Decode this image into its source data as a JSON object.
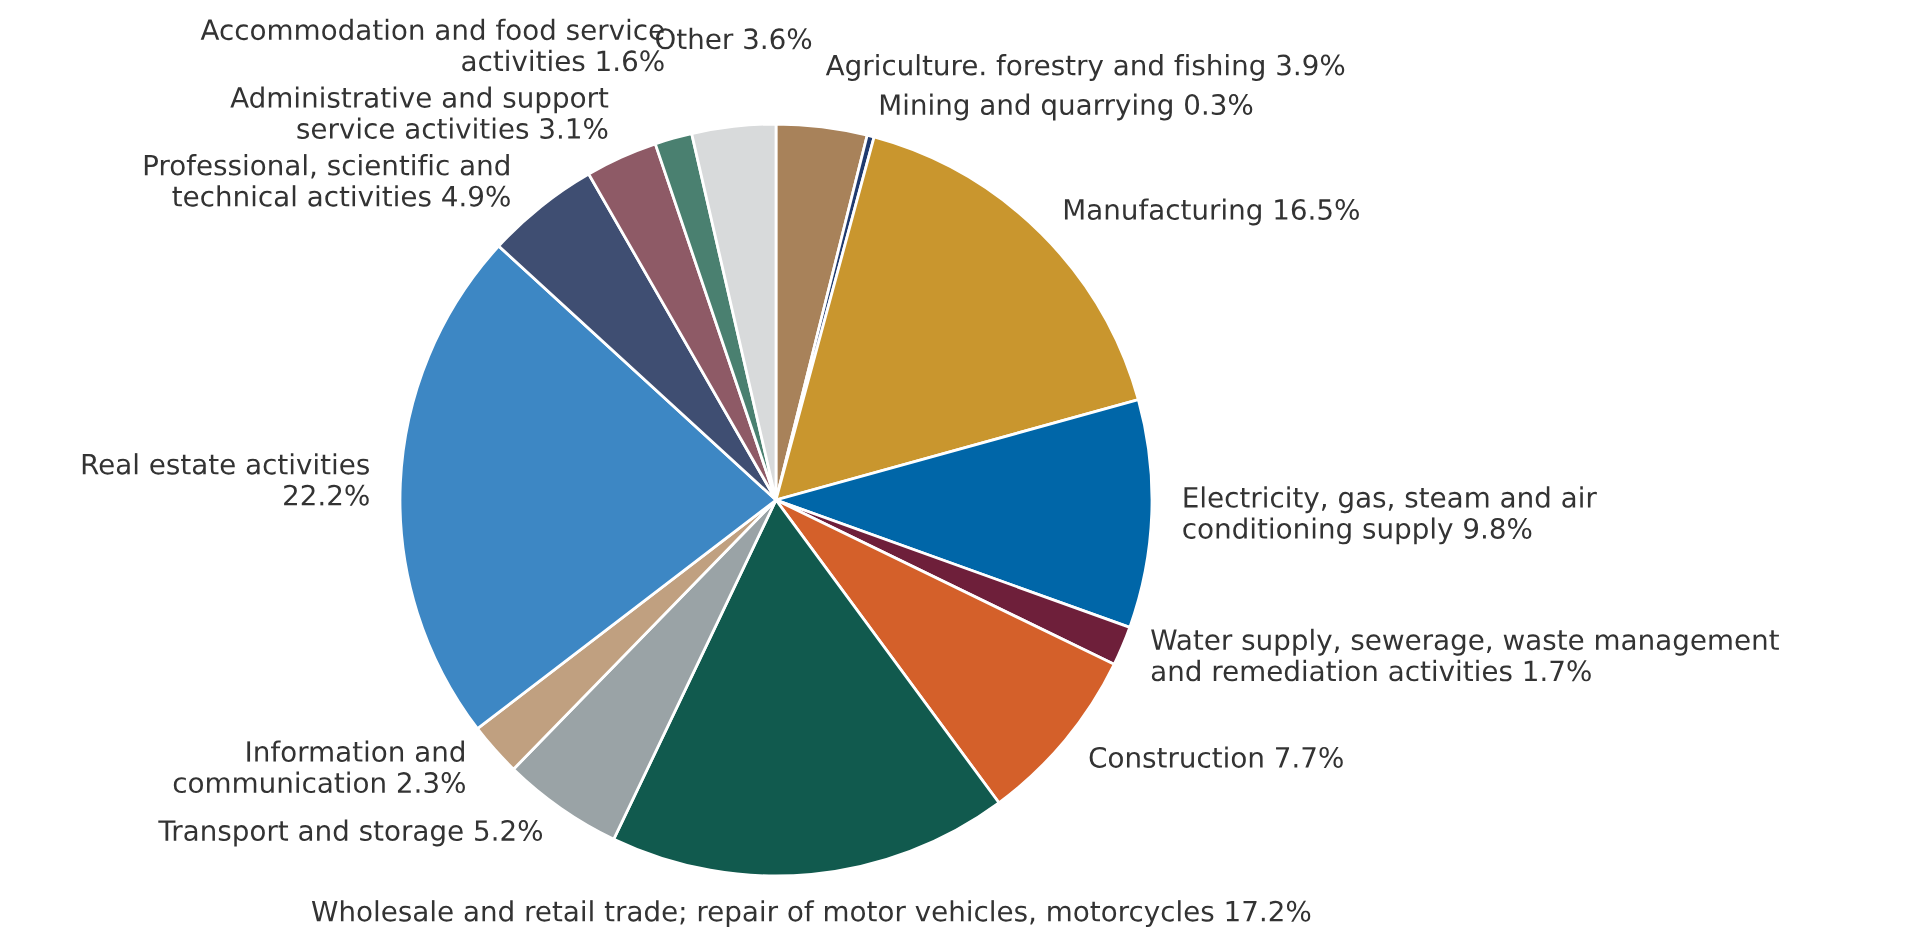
{
  "chart_data": {
    "type": "pie",
    "categories": [
      "Agriculture. forestry and fishing 3.9%",
      "Mining and quarrying 0.3%",
      "Manufacturing 16.5%",
      "Electricity, gas, steam and air\nconditioning supply 9.8%",
      "Water supply, sewerage, waste management\nand remediation activities 1.7%",
      "Construction 7.7%",
      "Wholesale and retail trade; repair of motor vehicles, motorcycles 17.2%",
      "Transport and storage 5.2%",
      "Information and\ncommunication 2.3%",
      "Real estate activities\n22.2%",
      "Professional, scientific and\ntechnical activities 4.9%",
      "Administrative and support\nservice activities 3.1%",
      "Accommodation and food service\nactivities 1.6%",
      "Other 3.6%"
    ],
    "values": [
      3.9,
      0.3,
      16.5,
      9.8,
      1.7,
      7.7,
      17.2,
      5.2,
      2.3,
      22.2,
      4.9,
      3.1,
      1.6,
      3.6
    ],
    "colors": [
      "#a8825a",
      "#1f3a6e",
      "#c9962e",
      "#0066a8",
      "#6e1f3a",
      "#d4602a",
      "#115a4e",
      "#9aa3a6",
      "#c0a080",
      "#3d87c4",
      "#3f4e72",
      "#8e5a66",
      "#4a8070",
      "#d8dadb"
    ],
    "legend": false
  }
}
